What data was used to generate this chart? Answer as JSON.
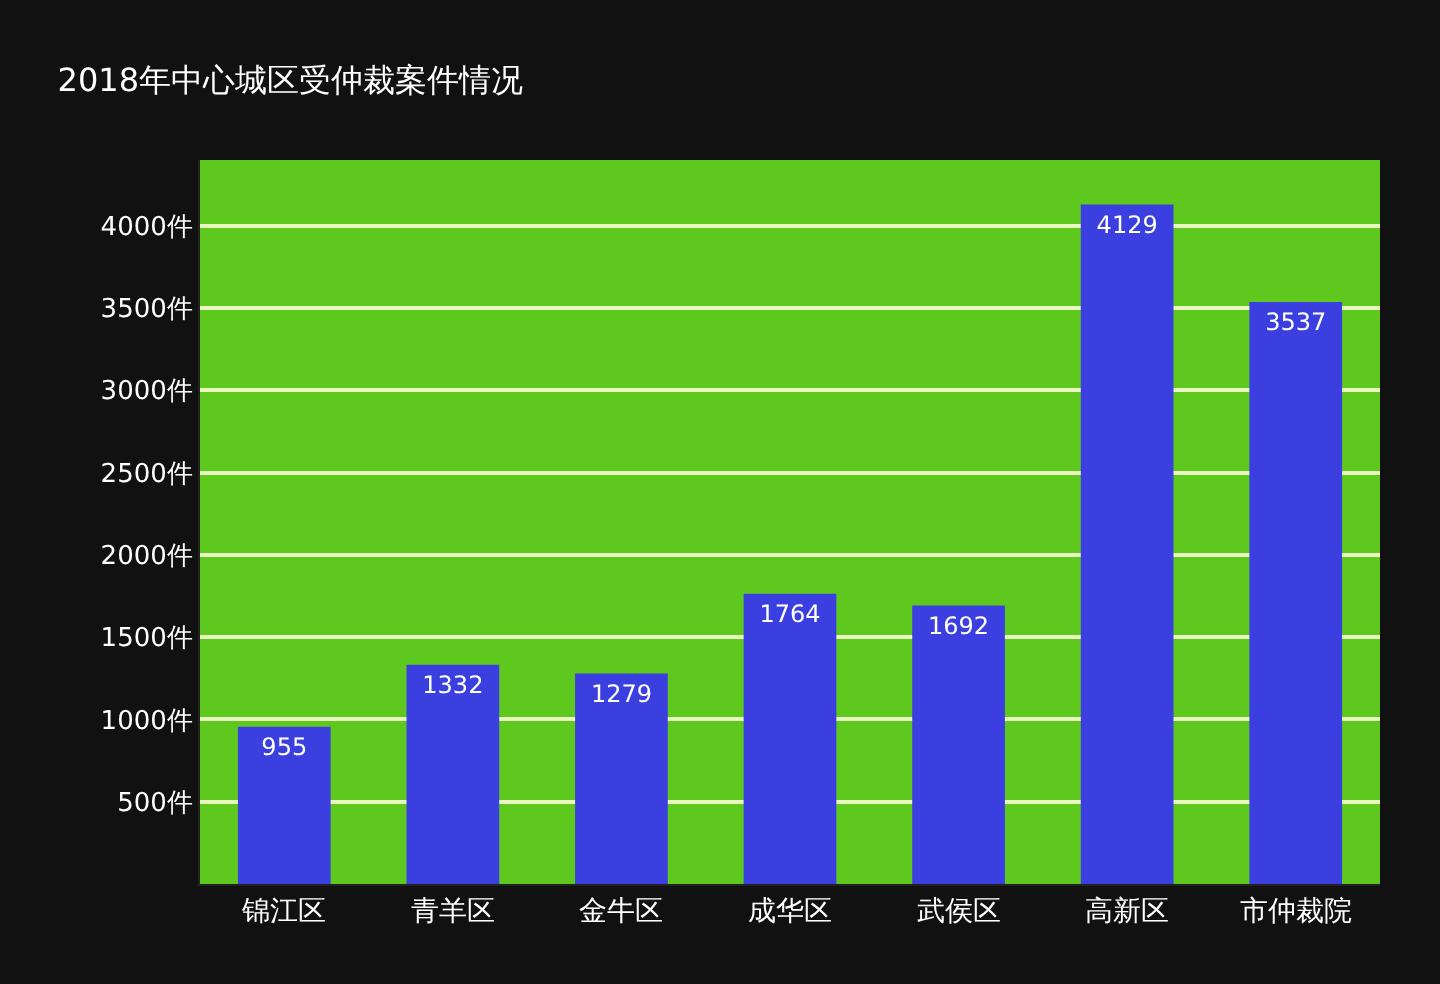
{
  "chart_data": {
    "type": "bar",
    "title": "2018年中心城区受仲裁案件情况",
    "categories": [
      "锦江区",
      "青羊区",
      "金牛区",
      "成华区",
      "武侯区",
      "高新区",
      "市仲裁院"
    ],
    "values": [
      955,
      1332,
      1279,
      1764,
      1692,
      4129,
      3537
    ],
    "color": "#3b3fe0",
    "ylim": [
      0,
      4400
    ],
    "yticks": [
      {
        "value": 500,
        "label": "500件"
      },
      {
        "value": 1000,
        "label": "1000件"
      },
      {
        "value": 1500,
        "label": "1500件"
      },
      {
        "value": 2000,
        "label": "2000件"
      },
      {
        "value": 2500,
        "label": "2500件"
      },
      {
        "value": 3000,
        "label": "3000件"
      },
      {
        "value": 3500,
        "label": "3500件"
      },
      {
        "value": 4000,
        "label": "4000件"
      }
    ],
    "grid": "y",
    "data_labels": true,
    "legend": false
  }
}
